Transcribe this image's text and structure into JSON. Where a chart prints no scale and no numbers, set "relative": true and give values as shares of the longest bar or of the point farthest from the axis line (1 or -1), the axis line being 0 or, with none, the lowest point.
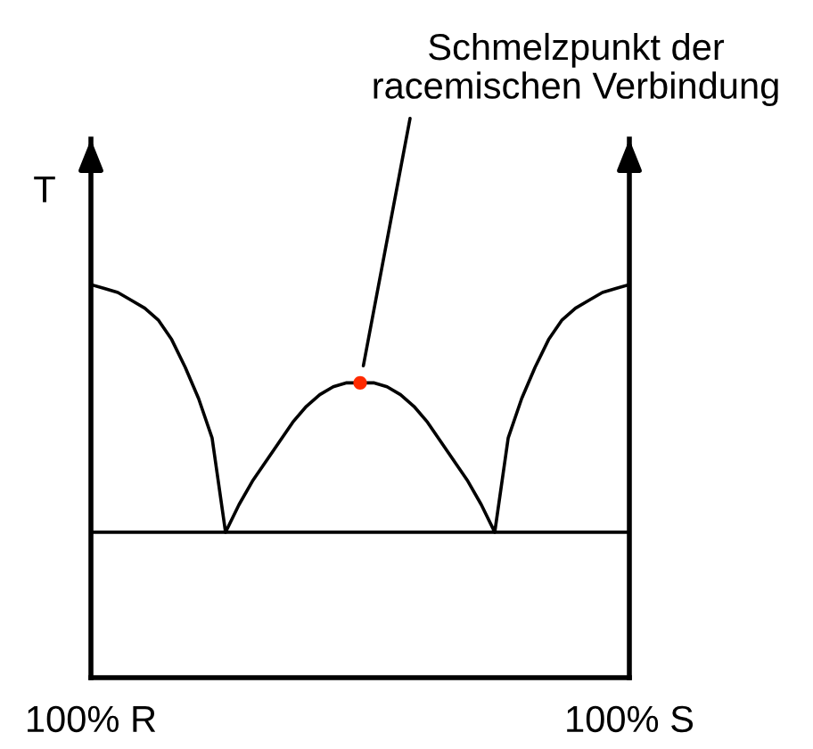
{
  "chart_data": {
    "type": "line",
    "relative": true,
    "ylabel": "T",
    "tick_labels": "x",
    "categories": [
      "100% R",
      null,
      null,
      null,
      null,
      null,
      null,
      null,
      null,
      null,
      null,
      null,
      null,
      null,
      null,
      null,
      null,
      null,
      null,
      null,
      null,
      null,
      null,
      null,
      null,
      null,
      null,
      null,
      null,
      null,
      null,
      null,
      null,
      null,
      null,
      null,
      null,
      null,
      null,
      null,
      "100% S"
    ],
    "series": [
      {
        "color": "#000000",
        "values": [
          1.0,
          0.99,
          0.98,
          0.96,
          0.94,
          0.91,
          0.86,
          0.79,
          0.71,
          0.61,
          0.37,
          0.44,
          0.5,
          0.55,
          0.6,
          0.65,
          0.69,
          0.72,
          0.74,
          0.75,
          0.75,
          0.75,
          0.74,
          0.72,
          0.69,
          0.65,
          0.6,
          0.55,
          0.5,
          0.44,
          0.37,
          0.61,
          0.71,
          0.79,
          0.86,
          0.91,
          0.94,
          0.96,
          0.98,
          0.99,
          1.0
        ]
      },
      {
        "type": "scatter",
        "color": "#ff2a00",
        "marker": "circle",
        "values": [
          null,
          null,
          null,
          null,
          null,
          null,
          null,
          null,
          null,
          null,
          null,
          null,
          null,
          null,
          null,
          null,
          null,
          null,
          null,
          null,
          0.75,
          null,
          null,
          null,
          null,
          null,
          null,
          null,
          null,
          null,
          null,
          null,
          null,
          null,
          null,
          null,
          null,
          null,
          null,
          null,
          null
        ]
      }
    ],
    "ref_lines": [
      {
        "axis": "y",
        "value": 0.37,
        "color": "#000000",
        "line_style": "solid"
      }
    ],
    "annotations": [
      "Schmelzpunkt der\nracemischen Verbindung"
    ]
  }
}
